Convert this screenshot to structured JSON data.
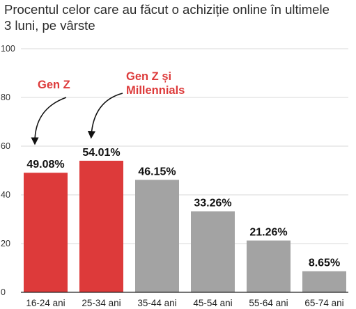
{
  "title": "Procentul celor care au făcut o achiziție online în ultimele 3 luni, pe vârste",
  "colors": {
    "highlight": "#dd3a3a",
    "neutral": "#a3a3a3",
    "grid": "#d9d9d9",
    "axis": "#222222"
  },
  "annotations": [
    {
      "text": "Gen Z",
      "target_category": "16-24 ani"
    },
    {
      "text": "Gen Z și\nMillennials",
      "target_category": "25-34 ani"
    }
  ],
  "chart_data": {
    "type": "bar",
    "title": "Procentul celor care au făcut o achiziție online în ultimele 3 luni, pe vârste",
    "xlabel": "",
    "ylabel": "",
    "ylim": [
      0,
      100
    ],
    "yticks": [
      0,
      20,
      40,
      60,
      80,
      100
    ],
    "grid": true,
    "categories": [
      "16-24 ani",
      "25-34 ani",
      "35-44 ani",
      "45-54 ani",
      "55-64 ani",
      "65-74 ani"
    ],
    "values": [
      49.08,
      54.01,
      46.15,
      33.26,
      21.26,
      8.65
    ],
    "value_labels": [
      "49.08%",
      "54.01%",
      "46.15%",
      "33.26%",
      "21.26%",
      "8.65%"
    ],
    "highlighted": [
      true,
      true,
      false,
      false,
      false,
      false
    ]
  }
}
